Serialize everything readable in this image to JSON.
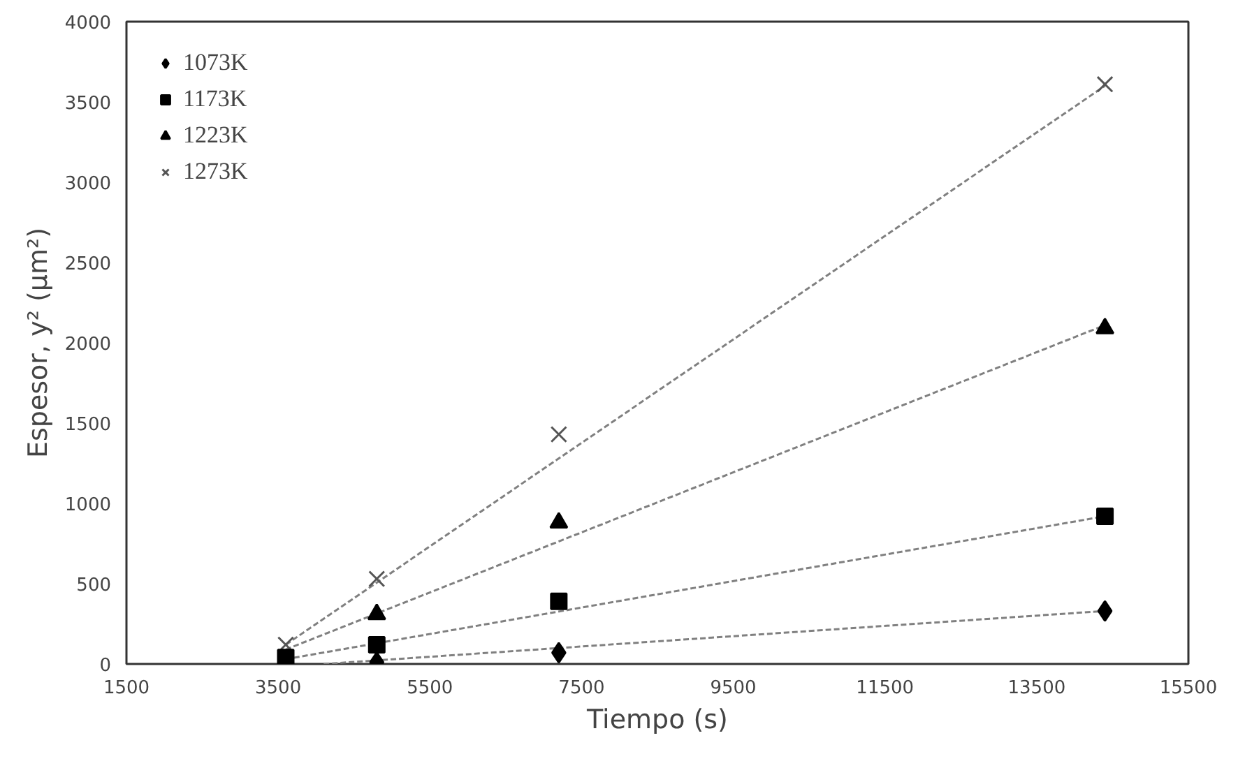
{
  "chart_data": {
    "type": "scatter",
    "xlabel": "Tiempo (s)",
    "ylabel": "Espesor, y² (μm²)",
    "xlim": [
      1500,
      15500
    ],
    "xticks": [
      1500,
      3500,
      5500,
      7500,
      9500,
      11500,
      13500,
      15500
    ],
    "ylim": [
      0,
      4000
    ],
    "yticks": [
      0,
      500,
      1000,
      1500,
      2000,
      2500,
      3000,
      3500,
      4000
    ],
    "grid": false,
    "legend": "top left",
    "series": [
      {
        "name": "1073K",
        "color": "#000000",
        "marker": "diamond",
        "x": [
          4800,
          7200,
          14400
        ],
        "values": [
          10,
          70,
          330
        ]
      },
      {
        "name": "1173K",
        "color": "#000000",
        "marker": "square",
        "x": [
          3600,
          4800,
          7200,
          14400
        ],
        "values": [
          40,
          120,
          390,
          920
        ]
      },
      {
        "name": "1223K",
        "color": "#000000",
        "marker": "triangle",
        "x": [
          4800,
          7200,
          14400
        ],
        "values": [
          310,
          880,
          2090
        ]
      },
      {
        "name": "1273K",
        "color": "#555555",
        "marker": "cross",
        "x": [
          3600,
          4800,
          7200,
          14400
        ],
        "values": [
          120,
          530,
          1430,
          3610
        ]
      },
      {
        "type": "line",
        "color": "#808080",
        "line_style": "dashed",
        "x": [
          4100,
          14400
        ],
        "values": [
          0,
          330
        ]
      },
      {
        "type": "line",
        "color": "#808080",
        "line_style": "dashed",
        "x": [
          3600,
          14400
        ],
        "values": [
          30,
          920
        ]
      },
      {
        "type": "line",
        "color": "#808080",
        "line_style": "dashed",
        "x": [
          3600,
          14400
        ],
        "values": [
          90,
          2110
        ]
      },
      {
        "type": "line",
        "color": "#808080",
        "line_style": "dashed",
        "x": [
          3600,
          14400
        ],
        "values": [
          120,
          3600
        ]
      }
    ]
  }
}
